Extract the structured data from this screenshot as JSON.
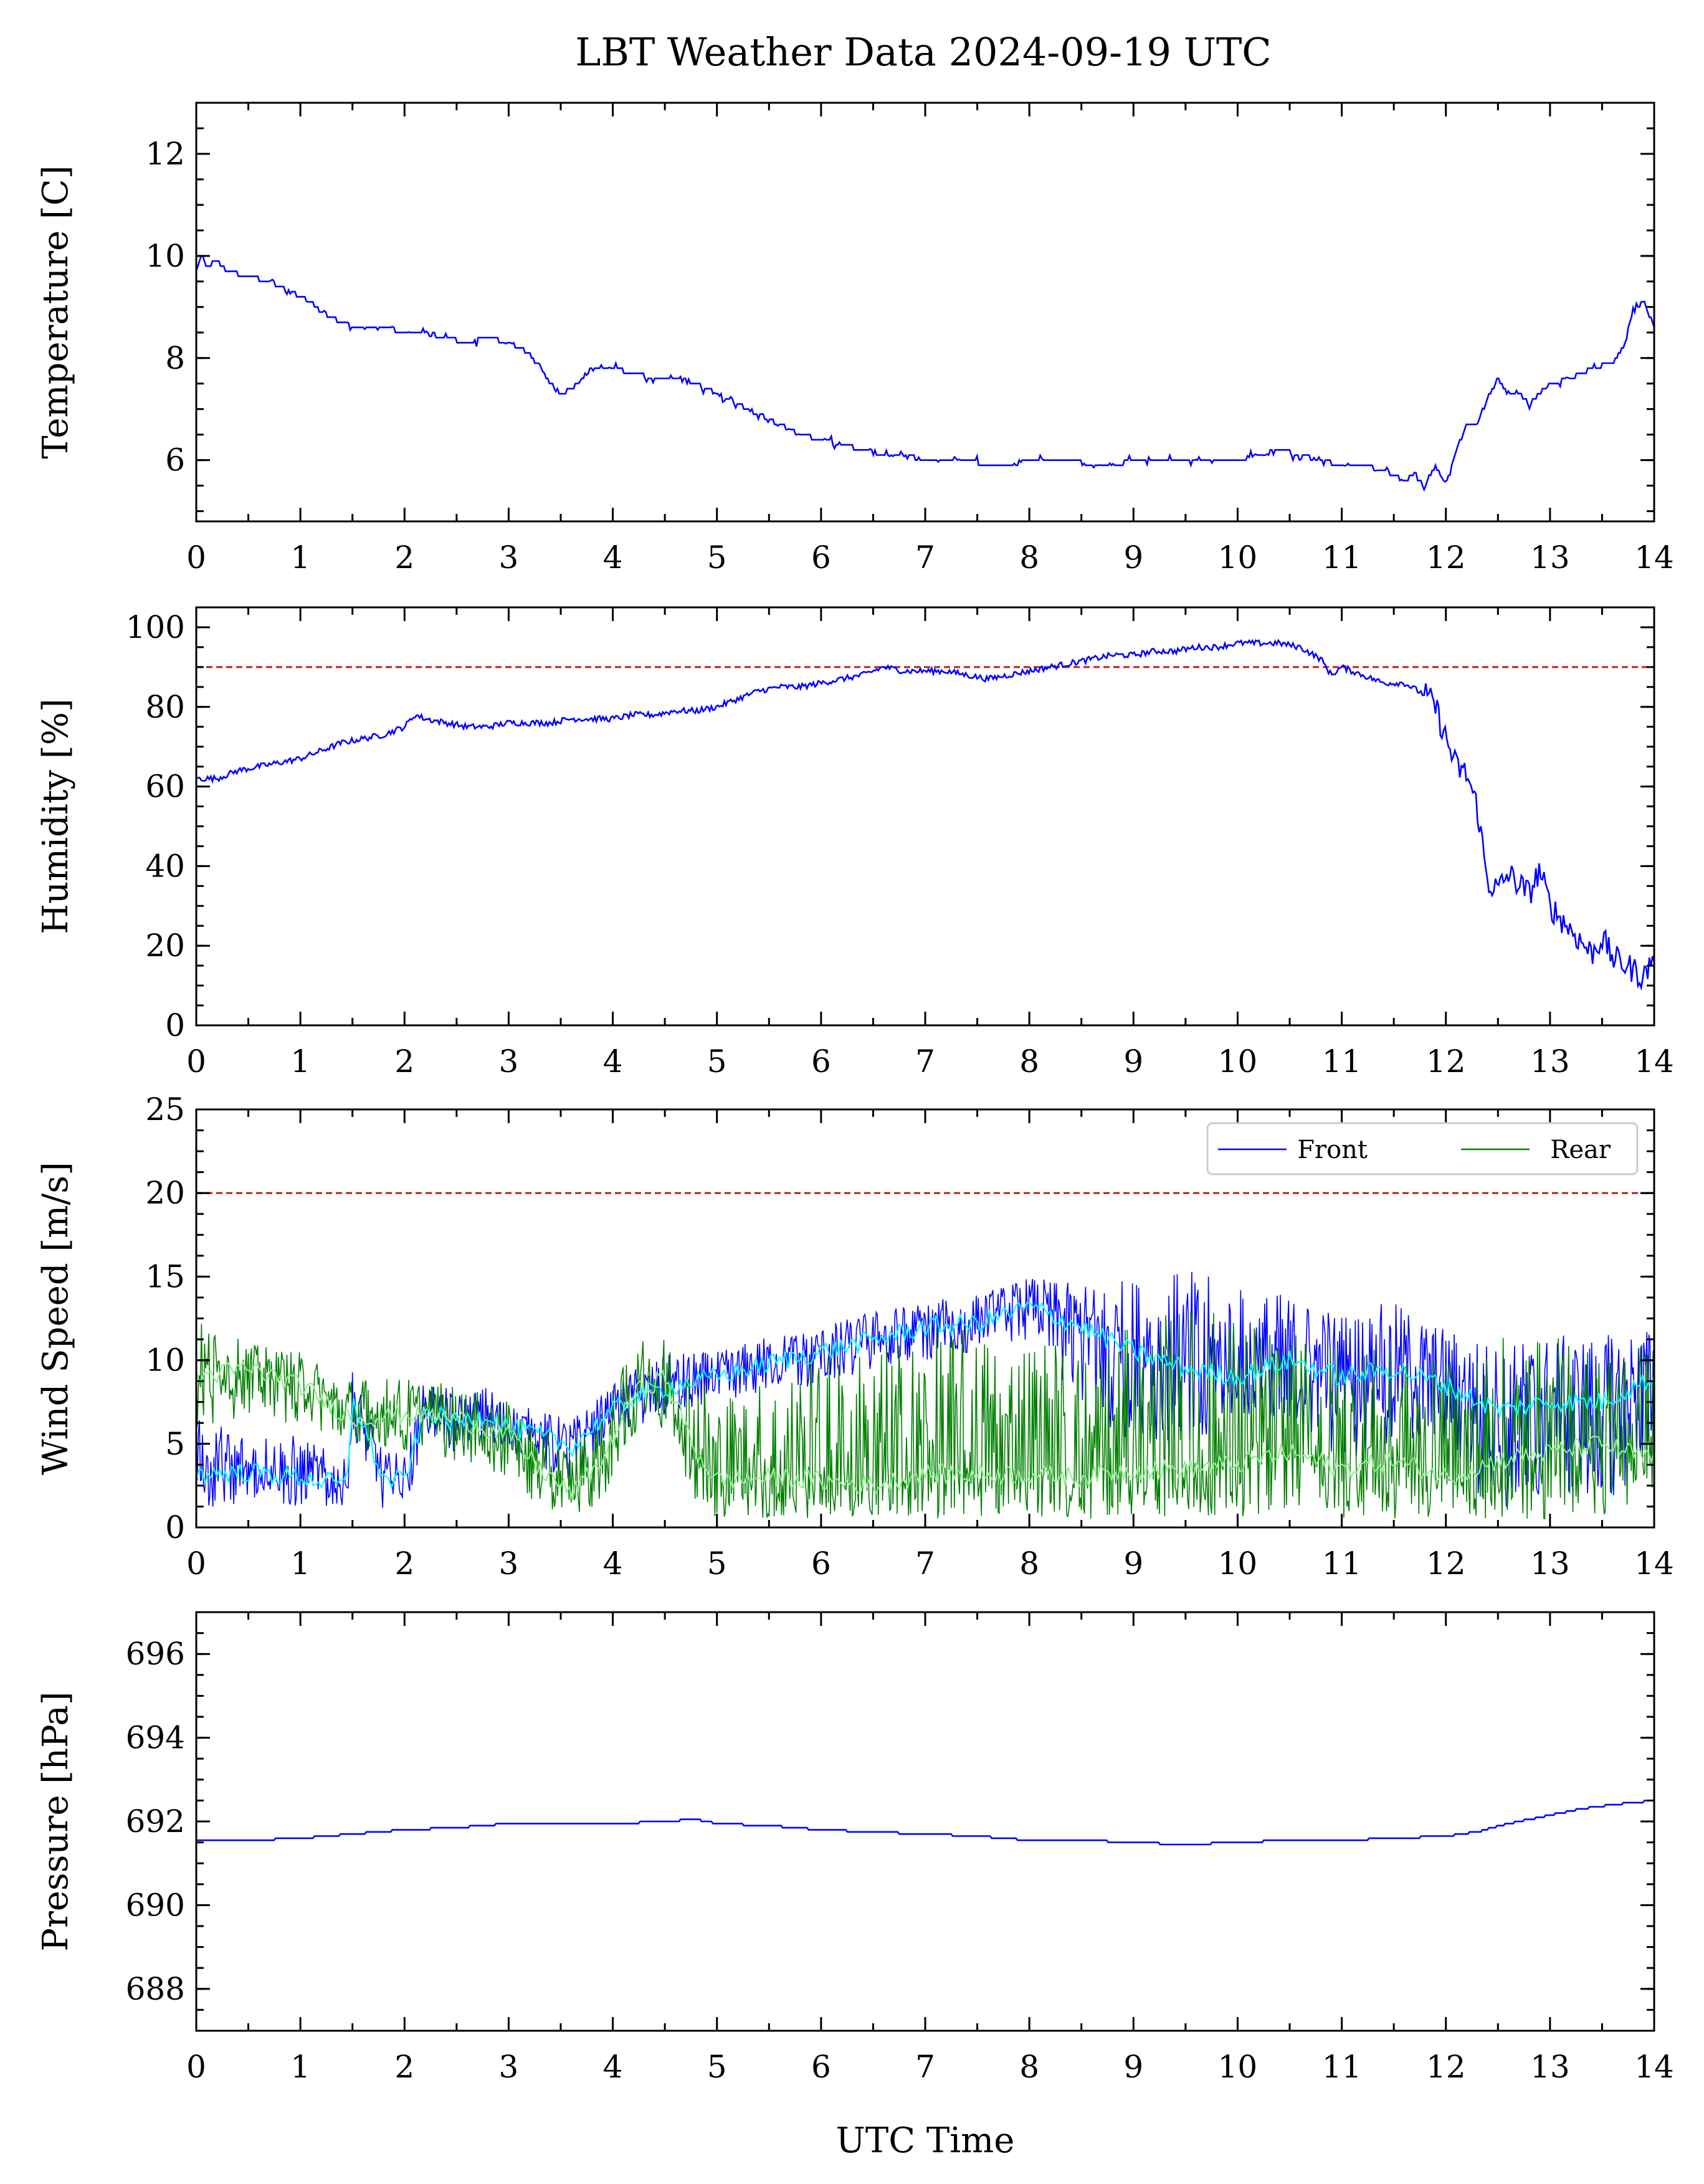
{
  "chart_data": [
    {
      "type": "line",
      "title": "LBT Weather Data 2024-09-19 UTC",
      "xlabel": "",
      "ylabel": "Temperature [C]",
      "xlim": [
        0,
        14
      ],
      "ylim": [
        4.8,
        13.0
      ],
      "x_ticks": [
        "0",
        "1",
        "2",
        "3",
        "4",
        "5",
        "6",
        "7",
        "8",
        "9",
        "10",
        "11",
        "12",
        "13",
        "14"
      ],
      "y_ticks": [
        "6",
        "8",
        "10",
        "12"
      ],
      "series": [
        {
          "color": "#0000ff",
          "x": [
            0,
            0.05,
            0.1,
            0.2,
            0.3,
            0.5,
            0.7,
            0.9,
            1.0,
            1.1,
            1.2,
            1.3,
            1.4,
            1.5,
            1.6,
            1.8,
            2.0,
            2.2,
            2.4,
            2.6,
            2.8,
            3.0,
            3.1,
            3.2,
            3.3,
            3.4,
            3.5,
            3.6,
            3.7,
            3.8,
            3.9,
            4.0,
            4.2,
            4.4,
            4.6,
            4.8,
            5.0,
            5.2,
            5.4,
            5.6,
            5.8,
            6.0,
            6.2,
            6.4,
            6.6,
            6.8,
            7.0,
            7.2,
            7.4,
            7.6,
            7.8,
            8.0,
            8.2,
            8.4,
            8.6,
            8.8,
            9.0,
            9.2,
            9.4,
            9.6,
            9.8,
            10.0,
            10.2,
            10.4,
            10.6,
            10.8,
            11.0,
            11.2,
            11.4,
            11.6,
            11.7,
            11.8,
            11.85,
            11.9,
            12.0,
            12.1,
            12.2,
            12.3,
            12.4,
            12.5,
            12.6,
            12.7,
            12.8,
            13.0,
            13.2,
            13.4,
            13.6,
            13.7,
            13.8,
            13.9,
            14.0
          ],
          "y": [
            9.7,
            10.0,
            9.8,
            9.9,
            9.7,
            9.6,
            9.5,
            9.3,
            9.2,
            9.1,
            8.9,
            8.8,
            8.7,
            8.6,
            8.6,
            8.6,
            8.5,
            8.5,
            8.4,
            8.3,
            8.4,
            8.3,
            8.2,
            8.1,
            7.8,
            7.5,
            7.3,
            7.4,
            7.6,
            7.8,
            7.8,
            7.8,
            7.7,
            7.6,
            7.6,
            7.5,
            7.3,
            7.1,
            6.9,
            6.7,
            6.5,
            6.4,
            6.3,
            6.2,
            6.1,
            6.1,
            6.0,
            6.0,
            6.0,
            5.9,
            5.9,
            6.0,
            6.0,
            6.0,
            5.9,
            5.9,
            6.0,
            6.0,
            6.0,
            6.0,
            6.0,
            6.0,
            6.1,
            6.2,
            6.1,
            6.0,
            5.9,
            5.9,
            5.8,
            5.6,
            5.7,
            5.5,
            5.7,
            5.9,
            5.5,
            6.2,
            6.7,
            6.7,
            7.2,
            7.6,
            7.3,
            7.3,
            7.1,
            7.5,
            7.6,
            7.8,
            7.9,
            8.2,
            8.9,
            9.1,
            8.6
          ]
        }
      ]
    },
    {
      "type": "line",
      "title": "",
      "xlabel": "",
      "ylabel": "Humidity [%]",
      "xlim": [
        0,
        14
      ],
      "ylim": [
        0,
        105
      ],
      "x_ticks": [
        "0",
        "1",
        "2",
        "3",
        "4",
        "5",
        "6",
        "7",
        "8",
        "9",
        "10",
        "11",
        "12",
        "13",
        "14"
      ],
      "y_ticks": [
        "0",
        "20",
        "40",
        "60",
        "80",
        "100"
      ],
      "threshold": {
        "value": 90,
        "color": "#b22222",
        "style": "dashed"
      },
      "series": [
        {
          "color": "#0000ff",
          "x": [
            0,
            0.2,
            0.4,
            0.6,
            0.8,
            1.0,
            1.2,
            1.4,
            1.6,
            1.8,
            2.0,
            2.1,
            2.2,
            2.4,
            2.6,
            2.8,
            3.0,
            3.2,
            3.4,
            3.6,
            3.8,
            4.0,
            4.2,
            4.4,
            4.6,
            4.8,
            5.0,
            5.2,
            5.4,
            5.6,
            5.8,
            6.0,
            6.2,
            6.4,
            6.6,
            6.8,
            7.0,
            7.2,
            7.4,
            7.6,
            7.8,
            8.0,
            8.2,
            8.4,
            8.6,
            8.8,
            9.0,
            9.2,
            9.4,
            9.6,
            9.8,
            10.0,
            10.2,
            10.4,
            10.6,
            10.8,
            10.9,
            11.0,
            11.2,
            11.4,
            11.6,
            11.8,
            11.9,
            12.0,
            12.1,
            12.2,
            12.3,
            12.4,
            12.5,
            12.6,
            12.8,
            12.9,
            13.0,
            13.2,
            13.4,
            13.5,
            13.6,
            13.8,
            13.9,
            14.0
          ],
          "y": [
            62,
            62,
            64,
            65,
            66,
            67,
            69,
            71,
            72,
            73,
            75,
            78,
            77,
            76,
            75,
            75,
            76,
            76,
            76,
            77,
            77,
            77,
            78,
            78,
            79,
            79,
            80,
            82,
            84,
            85,
            85,
            86,
            87,
            88,
            90,
            89,
            89,
            89,
            88,
            87,
            88,
            89,
            90,
            91,
            92,
            93,
            93,
            94,
            94,
            95,
            95,
            96,
            96,
            96,
            95,
            92,
            88,
            90,
            88,
            86,
            86,
            83,
            80,
            72,
            65,
            63,
            55,
            36,
            34,
            38,
            33,
            39,
            30,
            24,
            18,
            22,
            17,
            14,
            12,
            18
          ]
        }
      ]
    },
    {
      "type": "line",
      "title": "",
      "xlabel": "",
      "ylabel": "Wind Speed [m/s]",
      "xlim": [
        0,
        14
      ],
      "ylim": [
        0,
        25
      ],
      "x_ticks": [
        "0",
        "1",
        "2",
        "3",
        "4",
        "5",
        "6",
        "7",
        "8",
        "9",
        "10",
        "11",
        "12",
        "13",
        "14"
      ],
      "y_ticks": [
        "0",
        "5",
        "10",
        "15",
        "20",
        "25"
      ],
      "threshold": {
        "value": 20,
        "color": "#b22222",
        "style": "dashed"
      },
      "legend": {
        "placement": "top-right",
        "entries": [
          "Front",
          "Rear"
        ]
      },
      "series": [
        {
          "name": "Front",
          "color": "#0000ff",
          "smooth_color": "#00ffff",
          "x": [
            0,
            0.5,
            1.0,
            1.45,
            1.5,
            1.8,
            2.0,
            2.2,
            2.5,
            2.8,
            3.0,
            3.3,
            3.6,
            3.9,
            4.2,
            4.6,
            5.0,
            5.5,
            6.0,
            6.5,
            7.0,
            7.5,
            8.0,
            8.5,
            9.0,
            9.5,
            10.0,
            10.5,
            11.0,
            11.5,
            12.0,
            12.5,
            13.0,
            13.5,
            14.0
          ],
          "mean": [
            3.2,
            3.3,
            3.0,
            2.5,
            7.8,
            2.8,
            2.8,
            7.0,
            6.2,
            6.8,
            6.0,
            5.5,
            4.8,
            6.5,
            7.8,
            8.5,
            9.0,
            9.8,
            10.5,
            11.2,
            12.0,
            12.2,
            13.2,
            12.0,
            10.5,
            9.5,
            9.0,
            10.0,
            9.0,
            9.5,
            8.5,
            7.0,
            7.5,
            7.5,
            9.0
          ],
          "min": [
            1.0,
            1.5,
            1.2,
            1.0,
            5.5,
            1.0,
            1.0,
            5.0,
            4.5,
            5.0,
            4.5,
            3.5,
            2.5,
            4.5,
            6.0,
            7.0,
            7.5,
            8.0,
            8.5,
            9.5,
            10.0,
            10.5,
            11.0,
            7.0,
            5.0,
            5.0,
            6.0,
            6.5,
            4.0,
            4.0,
            3.0,
            1.0,
            1.5,
            1.5,
            3.0
          ],
          "max": [
            6.5,
            6.0,
            5.5,
            4.0,
            9.5,
            4.5,
            4.5,
            9.0,
            8.0,
            8.5,
            7.5,
            7.0,
            6.5,
            8.0,
            9.5,
            10.5,
            10.5,
            11.5,
            12.0,
            13.0,
            13.5,
            14.0,
            15.0,
            14.5,
            15.0,
            15.5,
            14.5,
            14.0,
            13.0,
            13.5,
            12.0,
            11.0,
            11.5,
            11.5,
            12.0
          ]
        },
        {
          "name": "Rear",
          "color": "#008000",
          "smooth_color": "#90ee90",
          "x": [
            0,
            0.5,
            1.0,
            1.5,
            2.0,
            2.5,
            3.0,
            3.3,
            3.6,
            3.9,
            4.2,
            4.5,
            4.8,
            5.0,
            5.5,
            6.0,
            6.5,
            7.0,
            7.5,
            8.0,
            8.5,
            9.0,
            9.5,
            10.0,
            10.5,
            11.0,
            11.5,
            12.0,
            12.5,
            13.0,
            13.5,
            14.0
          ],
          "mean": [
            9.0,
            9.5,
            8.5,
            6.5,
            6.8,
            6.5,
            5.5,
            3.5,
            2.0,
            4.0,
            8.0,
            9.0,
            4.5,
            2.8,
            3.0,
            2.8,
            2.5,
            3.2,
            3.2,
            3.2,
            3.0,
            3.5,
            3.5,
            3.8,
            4.5,
            3.5,
            4.0,
            3.0,
            4.0,
            4.5,
            5.0,
            4.0
          ],
          "min": [
            6.0,
            6.5,
            6.0,
            4.5,
            4.5,
            4.0,
            3.0,
            1.0,
            0.5,
            1.5,
            5.0,
            6.0,
            1.5,
            0.5,
            0.5,
            0.5,
            0.5,
            0.5,
            0.5,
            0.5,
            0.5,
            0.5,
            0.5,
            0.5,
            0.5,
            0.5,
            0.5,
            0.5,
            0.5,
            0.5,
            0.5,
            0.5
          ],
          "max": [
            12.5,
            11.0,
            10.5,
            9.0,
            9.0,
            8.5,
            7.5,
            6.0,
            5.0,
            7.0,
            11.0,
            11.5,
            10.0,
            8.0,
            9.0,
            10.5,
            11.0,
            12.0,
            12.0,
            12.0,
            11.0,
            12.0,
            13.5,
            13.0,
            11.5,
            11.5,
            10.5,
            10.0,
            11.5,
            11.5,
            11.0,
            11.5
          ]
        }
      ]
    },
    {
      "type": "line",
      "title": "",
      "xlabel": "UTC Time",
      "ylabel": "Pressure [hPa]",
      "xlim": [
        0,
        14
      ],
      "ylim": [
        687,
        697
      ],
      "x_ticks": [
        "0",
        "1",
        "2",
        "3",
        "4",
        "5",
        "6",
        "7",
        "8",
        "9",
        "10",
        "11",
        "12",
        "13",
        "14"
      ],
      "y_ticks": [
        "688",
        "690",
        "692",
        "694",
        "696"
      ],
      "series": [
        {
          "color": "#0000ff",
          "x": [
            0,
            0.5,
            1.0,
            1.5,
            2.0,
            2.5,
            3.0,
            3.5,
            4.0,
            4.5,
            4.8,
            5.0,
            5.5,
            6.0,
            6.5,
            7.0,
            7.5,
            8.0,
            8.5,
            9.0,
            9.5,
            10.0,
            10.5,
            11.0,
            11.5,
            12.0,
            12.3,
            12.6,
            13.0,
            13.3,
            13.6,
            14.0
          ],
          "y": [
            691.55,
            691.55,
            691.6,
            691.7,
            691.8,
            691.85,
            691.95,
            691.95,
            691.95,
            692.0,
            692.05,
            691.95,
            691.9,
            691.8,
            691.75,
            691.7,
            691.65,
            691.55,
            691.55,
            691.5,
            691.45,
            691.5,
            691.55,
            691.55,
            691.6,
            691.65,
            691.75,
            691.95,
            692.15,
            692.3,
            692.4,
            692.5
          ]
        }
      ]
    }
  ]
}
